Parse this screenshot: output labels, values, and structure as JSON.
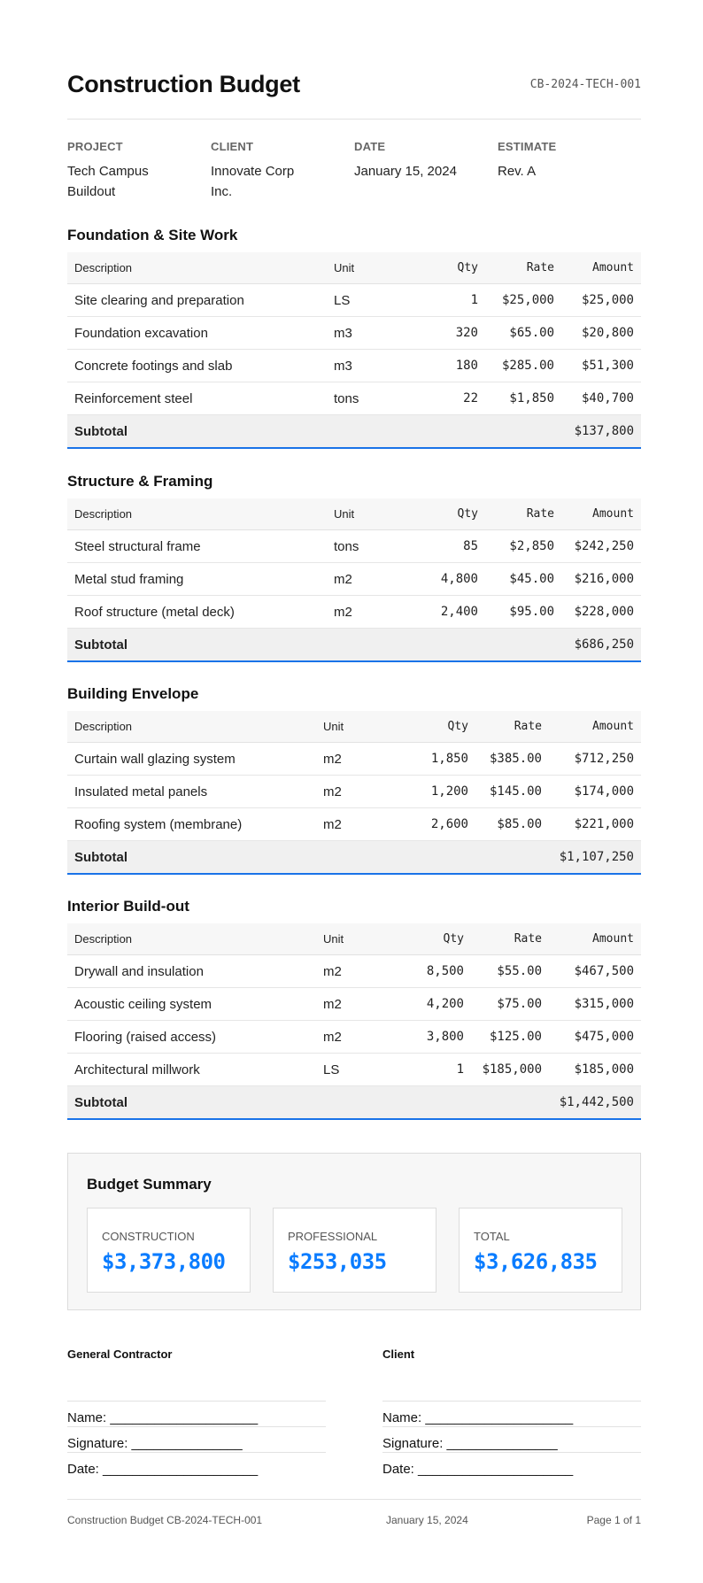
{
  "header": {
    "title": "Construction Budget",
    "doc_id": "CB-2024-TECH-001"
  },
  "meta": [
    {
      "label": "PROJECT",
      "value": "Tech Campus Buildout"
    },
    {
      "label": "CLIENT",
      "value": "Innovate Corp Inc."
    },
    {
      "label": "DATE",
      "value": "January 15, 2024"
    },
    {
      "label": "ESTIMATE",
      "value": "Rev. A"
    }
  ],
  "columns": [
    "Description",
    "Unit",
    "Qty",
    "Rate",
    "Amount"
  ],
  "subtotal_label": "Subtotal",
  "sections": [
    {
      "title": "Foundation & Site Work",
      "rows": [
        [
          "Site clearing and preparation",
          "LS",
          "1",
          "$25,000",
          "$25,000"
        ],
        [
          "Foundation excavation",
          "m3",
          "320",
          "$65.00",
          "$20,800"
        ],
        [
          "Concrete footings and slab",
          "m3",
          "180",
          "$285.00",
          "$51,300"
        ],
        [
          "Reinforcement steel",
          "tons",
          "22",
          "$1,850",
          "$40,700"
        ]
      ],
      "subtotal": "$137,800"
    },
    {
      "title": "Structure & Framing",
      "rows": [
        [
          "Steel structural frame",
          "tons",
          "85",
          "$2,850",
          "$242,250"
        ],
        [
          "Metal stud framing",
          "m2",
          "4,800",
          "$45.00",
          "$216,000"
        ],
        [
          "Roof structure (metal deck)",
          "m2",
          "2,400",
          "$95.00",
          "$228,000"
        ]
      ],
      "subtotal": "$686,250"
    },
    {
      "title": "Building Envelope",
      "rows": [
        [
          "Curtain wall glazing system",
          "m2",
          "1,850",
          "$385.00",
          "$712,250"
        ],
        [
          "Insulated metal panels",
          "m2",
          "1,200",
          "$145.00",
          "$174,000"
        ],
        [
          "Roofing system (membrane)",
          "m2",
          "2,600",
          "$85.00",
          "$221,000"
        ]
      ],
      "subtotal": "$1,107,250"
    },
    {
      "title": "Interior Build-out",
      "rows": [
        [
          "Drywall and insulation",
          "m2",
          "8,500",
          "$55.00",
          "$467,500"
        ],
        [
          "Acoustic ceiling system",
          "m2",
          "4,200",
          "$75.00",
          "$315,000"
        ],
        [
          "Flooring (raised access)",
          "m2",
          "3,800",
          "$125.00",
          "$475,000"
        ],
        [
          "Architectural millwork",
          "LS",
          "1",
          "$185,000",
          "$185,000"
        ]
      ],
      "subtotal": "$1,442,500"
    }
  ],
  "summary": {
    "title": "Budget Summary",
    "cards": [
      {
        "label": "CONSTRUCTION",
        "value": "$3,373,800"
      },
      {
        "label": "PROFESSIONAL",
        "value": "$253,035"
      },
      {
        "label": "TOTAL",
        "value": "$3,626,835"
      }
    ],
    "accent_color": "#0a7cff"
  },
  "signatures": [
    {
      "title": "General Contractor",
      "lines": [
        "Name: ____________________",
        "Signature: _______________",
        "Date: _____________________"
      ]
    },
    {
      "title": "Client",
      "lines": [
        "Name: ____________________",
        "Signature: _______________",
        "Date: _____________________"
      ]
    }
  ],
  "footer": {
    "left": "Construction Budget CB-2024-TECH-001",
    "center": "January 15, 2024",
    "right": "Page 1 of 1"
  }
}
